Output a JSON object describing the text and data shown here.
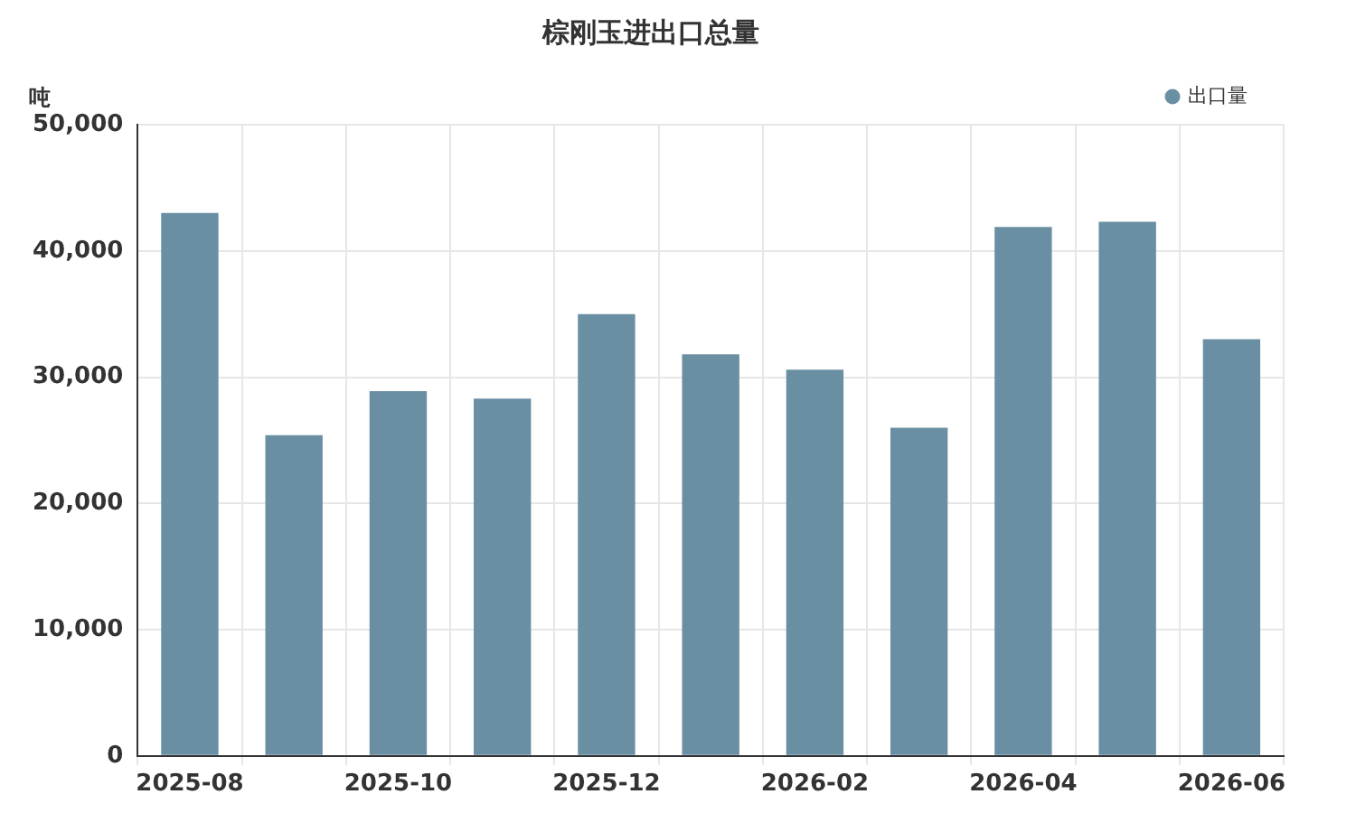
{
  "chart_data": {
    "type": "bar",
    "title": "棕刚玉进出口总量",
    "ylabel": "吨",
    "categories": [
      "2025-08",
      null,
      "2025-10",
      null,
      "2025-12",
      null,
      "2026-02",
      null,
      "2026-04",
      null,
      "2026-06"
    ],
    "series": [
      {
        "name": "出口量",
        "color": "#6a8fa3",
        "values": [
          43000,
          25400,
          28900,
          28300,
          35000,
          31800,
          30600,
          26000,
          41900,
          42300,
          33000
        ]
      }
    ],
    "ylim": [
      0,
      50000
    ],
    "yticks": [
      0,
      {
        "value": 10000,
        "label": "10,000"
      },
      {
        "value": 20000,
        "label": "20,000"
      },
      {
        "value": 30000,
        "label": "30,000"
      },
      {
        "value": 40000,
        "label": "40,000"
      },
      {
        "value": 50000,
        "label": "50,000"
      }
    ],
    "grid": true,
    "legend": "top right"
  }
}
